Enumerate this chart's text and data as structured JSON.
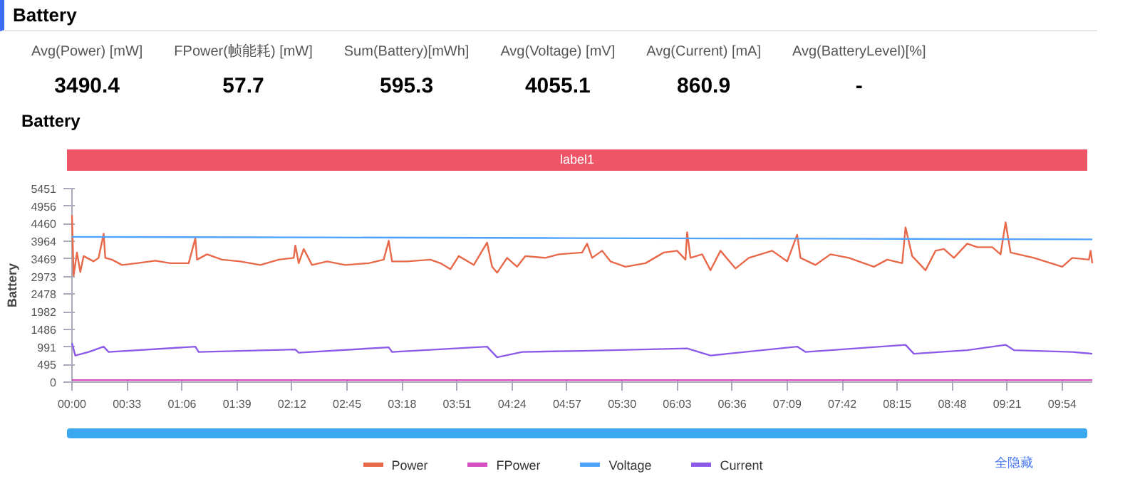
{
  "chart_data": [
    {
      "type": "other",
      "title": "Battery",
      "categories": [
        "Avg(Power) [mW]",
        "FPower(帧能耗) [mW]",
        "Sum(Battery)[mWh]",
        "Avg(Voltage) [mV]",
        "Avg(Current) [mA]",
        "Avg(BatteryLevel)[%]"
      ],
      "value_labels": [
        "3490.4",
        "57.7",
        "595.3",
        "4055.1",
        "860.9",
        "-"
      ]
    },
    {
      "type": "line",
      "title": "Battery",
      "ylabel": "Battery",
      "annotations": [
        "label1",
        "全隐藏"
      ],
      "xlim": [
        0,
        612
      ],
      "ylim": [
        0,
        5451
      ],
      "xticks": [
        {
          "value": 0,
          "label": "00:00"
        },
        {
          "value": 33,
          "label": "00:33"
        },
        {
          "value": 66,
          "label": "01:06"
        },
        {
          "value": 99,
          "label": "01:39"
        },
        {
          "value": 132,
          "label": "02:12"
        },
        {
          "value": 165,
          "label": "02:45"
        },
        {
          "value": 198,
          "label": "03:18"
        },
        {
          "value": 231,
          "label": "03:51"
        },
        {
          "value": 264,
          "label": "04:24"
        },
        {
          "value": 297,
          "label": "04:57"
        },
        {
          "value": 330,
          "label": "05:30"
        },
        {
          "value": 363,
          "label": "06:03"
        },
        {
          "value": 396,
          "label": "06:36"
        },
        {
          "value": 429,
          "label": "07:09"
        },
        {
          "value": 462,
          "label": "07:42"
        },
        {
          "value": 495,
          "label": "08:15"
        },
        {
          "value": 528,
          "label": "08:48"
        },
        {
          "value": 561,
          "label": "09:21"
        },
        {
          "value": 594,
          "label": "09:54"
        }
      ],
      "yticks": [
        0,
        495,
        991,
        1486,
        1982,
        2478,
        2973,
        3469,
        3964,
        4460,
        4956,
        5451
      ],
      "grid": false,
      "legend": "bottom",
      "series": [
        {
          "name": "Power",
          "color": "#e8684a",
          "x": [
            0,
            1,
            3,
            5,
            7,
            13,
            16,
            19,
            20,
            24,
            30,
            39,
            50,
            59,
            70,
            74,
            75,
            81,
            90,
            101,
            113,
            124,
            133,
            134,
            136,
            139,
            144,
            153,
            164,
            178,
            187,
            190,
            192,
            201,
            215,
            221,
            227,
            232,
            241,
            249,
            252,
            255,
            261,
            267,
            272,
            284,
            292,
            306,
            309,
            312,
            318,
            323,
            332,
            344,
            355,
            363,
            368,
            369,
            371,
            378,
            383,
            389,
            398,
            406,
            420,
            429,
            435,
            437,
            446,
            455,
            466,
            481,
            489,
            498,
            500,
            504,
            512,
            518,
            523,
            529,
            537,
            543,
            552,
            557,
            560,
            563,
            577,
            594,
            600,
            610,
            611,
            612
          ],
          "values": [
            4700,
            3000,
            3650,
            3100,
            3550,
            3400,
            3500,
            4180,
            3500,
            3450,
            3300,
            3350,
            3420,
            3350,
            3350,
            4050,
            3450,
            3600,
            3450,
            3400,
            3300,
            3450,
            3500,
            3850,
            3350,
            3750,
            3300,
            3400,
            3300,
            3350,
            3450,
            3980,
            3400,
            3400,
            3450,
            3350,
            3180,
            3550,
            3300,
            3930,
            3250,
            3080,
            3500,
            3250,
            3550,
            3500,
            3600,
            3650,
            3900,
            3500,
            3700,
            3400,
            3250,
            3350,
            3650,
            3700,
            3450,
            4220,
            3500,
            3600,
            3150,
            3700,
            3200,
            3500,
            3700,
            3400,
            4150,
            3500,
            3300,
            3600,
            3500,
            3250,
            3450,
            3350,
            4360,
            3550,
            3150,
            3700,
            3750,
            3500,
            3900,
            3800,
            3800,
            3600,
            4500,
            3650,
            3500,
            3250,
            3500,
            3450,
            3700,
            3350
          ]
        },
        {
          "name": "FPower",
          "color": "#d64fc0",
          "x": [
            0,
            612
          ],
          "values": [
            58,
            58
          ]
        },
        {
          "name": "Voltage",
          "color": "#4da3ff",
          "x": [
            0,
            150,
            300,
            450,
            612
          ],
          "values": [
            4090,
            4075,
            4055,
            4040,
            4020
          ]
        },
        {
          "name": "Current",
          "color": "#8c5ae8",
          "x": [
            0,
            2,
            10,
            19,
            22,
            74,
            76,
            134,
            136,
            190,
            192,
            249,
            255,
            270,
            306,
            369,
            383,
            435,
            440,
            500,
            505,
            537,
            560,
            565,
            600,
            612
          ],
          "values": [
            1100,
            750,
            850,
            1000,
            850,
            1000,
            850,
            920,
            830,
            980,
            850,
            1000,
            700,
            850,
            880,
            950,
            750,
            1000,
            850,
            1050,
            800,
            900,
            1050,
            900,
            850,
            800
          ]
        }
      ]
    }
  ]
}
